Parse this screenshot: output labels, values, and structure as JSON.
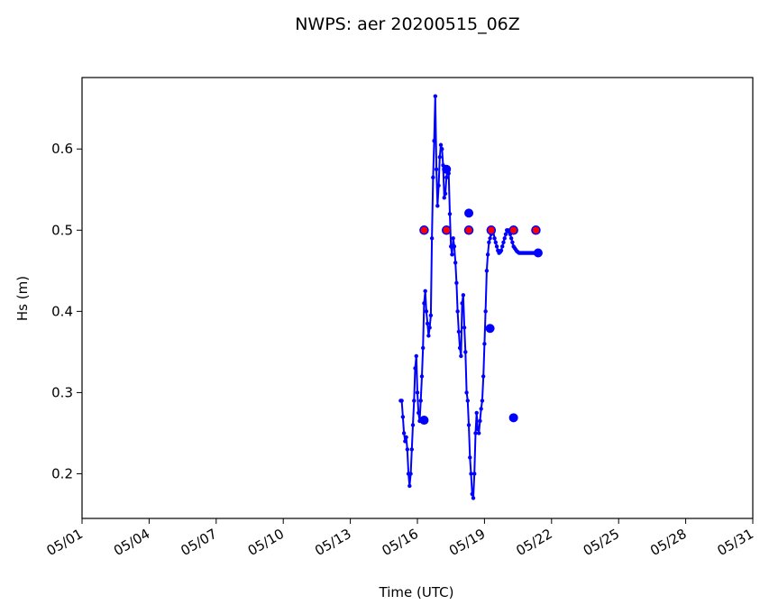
{
  "chart_data": {
    "type": "line",
    "title": "NWPS: aer 20200515_06Z",
    "xlabel": "Time (UTC)",
    "ylabel": "Hs (m)",
    "xlim": [
      "05/01",
      "05/31"
    ],
    "ylim": [
      0.145,
      0.688
    ],
    "x_ticks": [
      "05/01",
      "05/04",
      "05/07",
      "05/10",
      "05/13",
      "05/16",
      "05/19",
      "05/22",
      "05/25",
      "05/28",
      "05/31"
    ],
    "y_ticks": [
      0.2,
      0.3,
      0.4,
      0.5,
      0.6
    ],
    "grid": false,
    "colors": {
      "line": "#0000ff",
      "marker_face": "#ff0000",
      "marker_edge": "#0000ff"
    },
    "series": [
      {
        "x_day": [
          15.25,
          15.3,
          15.35,
          15.4,
          15.45,
          15.5,
          15.55,
          15.6,
          15.65,
          15.7,
          15.75,
          15.8,
          15.85,
          15.9,
          15.95,
          16.0,
          16.05,
          16.1,
          16.15,
          16.2,
          16.25,
          16.3,
          16.35,
          16.4,
          16.45,
          16.5,
          16.55,
          16.6,
          16.65,
          16.7,
          16.75,
          16.8,
          16.85,
          16.9,
          16.95,
          17.0,
          17.05,
          17.1,
          17.15,
          17.2,
          17.25,
          17.3,
          17.35,
          17.4,
          17.45,
          17.5,
          17.55,
          17.6,
          17.65,
          17.7,
          17.75,
          17.8,
          17.85,
          17.9,
          17.95,
          18.0,
          18.05,
          18.1,
          18.15,
          18.2,
          18.25,
          18.3,
          18.35,
          18.4,
          18.45,
          18.5,
          18.55,
          18.6,
          18.65,
          18.7,
          18.75,
          18.8,
          18.85,
          18.9,
          18.95,
          19.0,
          19.05,
          19.1,
          19.15,
          19.2,
          19.25,
          19.3,
          19.35,
          19.4,
          19.45,
          19.5,
          19.55,
          19.6,
          19.65,
          19.7,
          19.75,
          19.8,
          19.85,
          19.9,
          19.95,
          20.0,
          20.05,
          20.1,
          20.15,
          20.2,
          20.25,
          20.3,
          20.35,
          20.4,
          20.45,
          20.5,
          20.55,
          20.6,
          20.65,
          20.7,
          20.75,
          20.8,
          20.85,
          20.9,
          20.95,
          21.0,
          21.05,
          21.1,
          21.15,
          21.2,
          21.25,
          21.3,
          21.35
        ],
        "values": [
          0.29,
          0.29,
          0.27,
          0.25,
          0.24,
          0.245,
          0.23,
          0.2,
          0.185,
          0.2,
          0.23,
          0.26,
          0.29,
          0.33,
          0.345,
          0.3,
          0.275,
          0.265,
          0.29,
          0.32,
          0.355,
          0.41,
          0.425,
          0.4,
          0.385,
          0.37,
          0.38,
          0.395,
          0.49,
          0.565,
          0.61,
          0.665,
          0.575,
          0.53,
          0.555,
          0.59,
          0.605,
          0.6,
          0.58,
          0.54,
          0.545,
          0.565,
          0.575,
          0.57,
          0.52,
          0.48,
          0.47,
          0.49,
          0.48,
          0.46,
          0.435,
          0.4,
          0.375,
          0.355,
          0.345,
          0.41,
          0.42,
          0.38,
          0.35,
          0.3,
          0.29,
          0.26,
          0.22,
          0.2,
          0.175,
          0.17,
          0.2,
          0.25,
          0.275,
          0.255,
          0.25,
          0.265,
          0.28,
          0.29,
          0.32,
          0.36,
          0.4,
          0.45,
          0.47,
          0.485,
          0.49,
          0.495,
          0.5,
          0.498,
          0.49,
          0.485,
          0.48,
          0.475,
          0.472,
          0.473,
          0.475,
          0.48,
          0.485,
          0.49,
          0.495,
          0.5,
          0.5,
          0.498,
          0.495,
          0.49,
          0.485,
          0.48,
          0.478,
          0.476,
          0.474,
          0.473,
          0.472,
          0.472,
          0.472,
          0.472,
          0.472,
          0.472,
          0.472,
          0.472,
          0.472,
          0.472,
          0.472,
          0.472,
          0.472,
          0.472,
          0.472,
          0.472,
          0.472
        ]
      }
    ],
    "big_markers": [
      {
        "x_day": 16.3,
        "value": 0.266
      },
      {
        "x_day": 17.3,
        "value": 0.575
      },
      {
        "x_day": 18.3,
        "value": 0.521
      },
      {
        "x_day": 19.25,
        "value": 0.379
      },
      {
        "x_day": 20.3,
        "value": 0.269
      },
      {
        "x_day": 21.4,
        "value": 0.472
      }
    ],
    "red_markers": [
      {
        "x_day": 16.3,
        "value": 0.5
      },
      {
        "x_day": 17.3,
        "value": 0.5
      },
      {
        "x_day": 18.3,
        "value": 0.5
      },
      {
        "x_day": 19.3,
        "value": 0.5
      },
      {
        "x_day": 20.3,
        "value": 0.5
      },
      {
        "x_day": 21.3,
        "value": 0.5
      }
    ]
  }
}
